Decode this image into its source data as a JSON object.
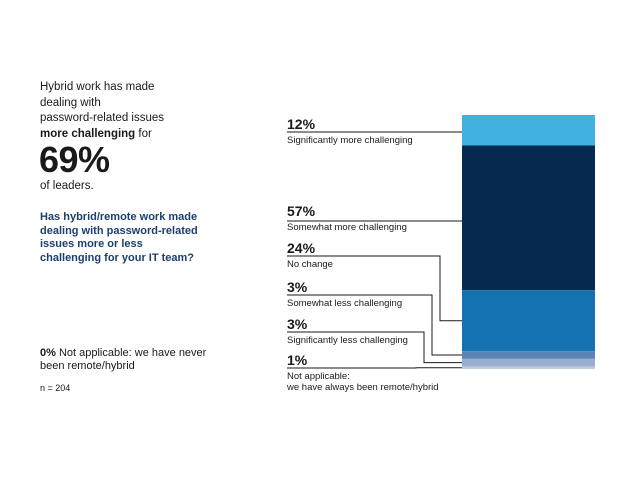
{
  "intro": {
    "line1": "Hybrid work has made",
    "line2": "dealing with",
    "line3": "password-related issues",
    "bold": "more challenging",
    "after_bold": " for"
  },
  "headline": {
    "value": "69%",
    "suffix": "of leaders."
  },
  "question": "Has hybrid/remote work made dealing with password-related issues more or less challenging for your IT team?",
  "not_applicable_note": {
    "pct": "0%",
    "text": " Not applicable: we have never been remote/hybrid"
  },
  "sample": "n = 204",
  "chart_data": {
    "type": "bar",
    "stacked": true,
    "orientation": "vertical",
    "categories": [
      "Significantly more challenging",
      "Somewhat more challenging",
      "No change",
      "Somewhat less challenging",
      "Significantly less challenging",
      "Not applicable:\nwe have always been remote/hybrid"
    ],
    "values": [
      12,
      57,
      24,
      3,
      3,
      1
    ],
    "value_labels": [
      "12%",
      "57%",
      "24%",
      "3%",
      "3%",
      "1%"
    ],
    "colors": [
      "#41b1e1",
      "#05294f",
      "#1572b0",
      "#5b83b5",
      "#98add0",
      "#c3cbdb"
    ],
    "ylim": [
      0,
      100
    ]
  }
}
